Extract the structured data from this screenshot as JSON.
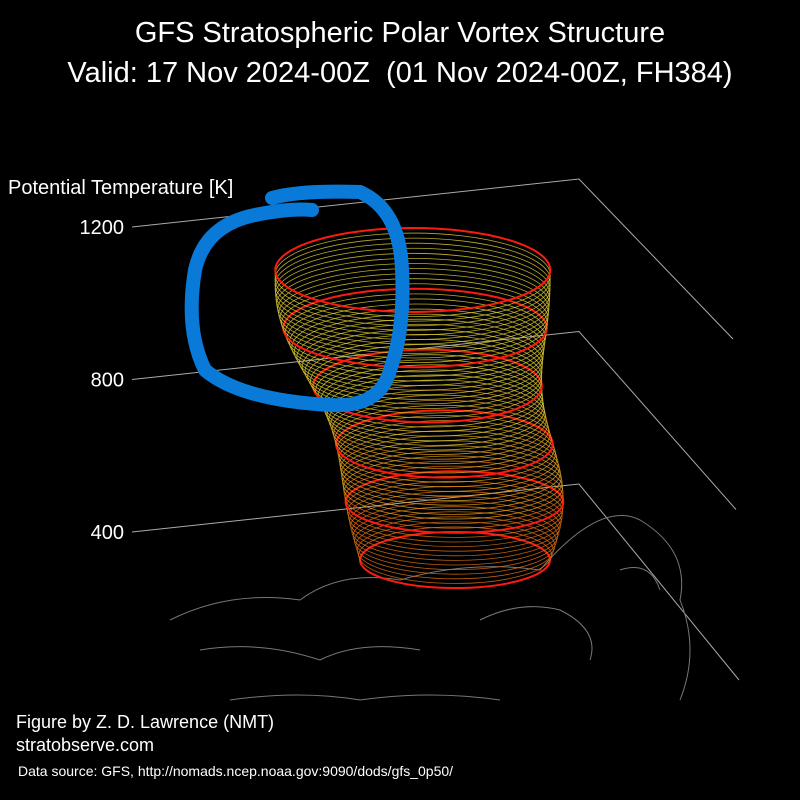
{
  "chart_data": {
    "type": "surface",
    "title": "GFS Stratospheric Polar Vortex Structure",
    "subtitle": "Valid: 17 Nov 2024-00Z  (01 Nov 2024-00Z, FH384)",
    "ylabel": "Potential Temperature [K]",
    "ylim": [
      400,
      1200
    ],
    "yticks": [
      400,
      800,
      1200
    ],
    "grid": true,
    "credits": [
      "Figure by Z. D. Lawrence (NMT)",
      "stratobserve.com"
    ],
    "source": "Data source: GFS, http://nomads.ncep.noaa.gov:9090/dods/gfs_0p50/"
  }
}
